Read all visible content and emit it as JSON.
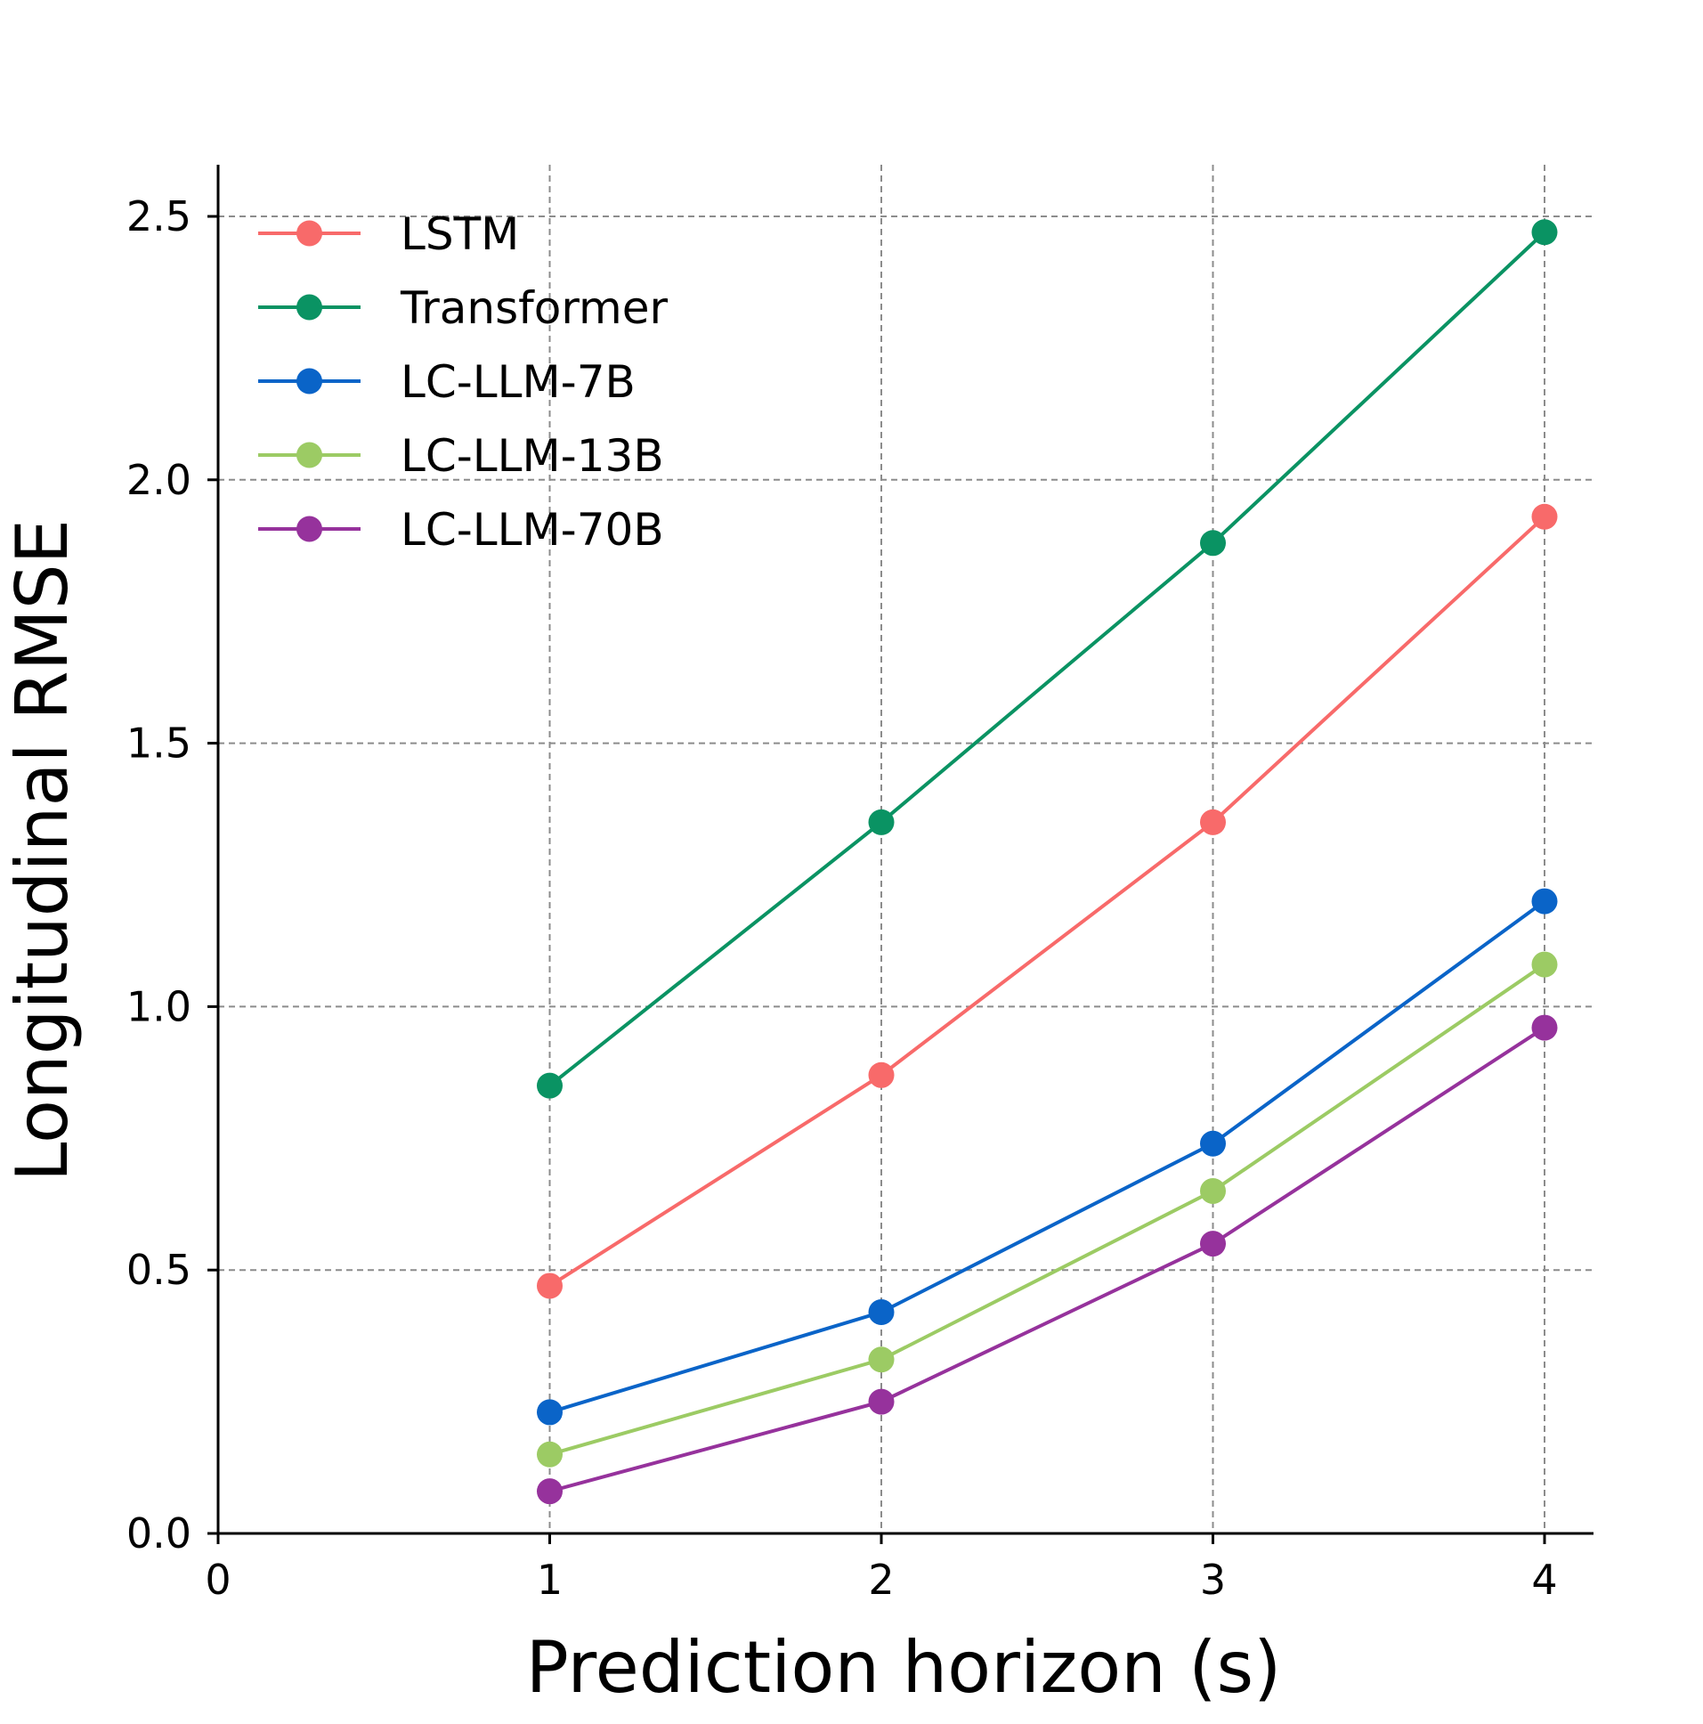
{
  "chart_data": {
    "type": "line",
    "title": "",
    "xlabel": "Prediction horizon (s)",
    "ylabel": "Longitudinal RMSE",
    "xlim": [
      0,
      4.15
    ],
    "ylim": [
      0,
      2.6
    ],
    "xticks": [
      0,
      1,
      2,
      3,
      4
    ],
    "xtick_labels": [
      "0",
      "1",
      "2",
      "3",
      "4"
    ],
    "yticks": [
      0.0,
      0.5,
      1.0,
      1.5,
      2.0,
      2.5
    ],
    "ytick_labels": [
      "0.0",
      "0.5",
      "1.0",
      "1.5",
      "2.0",
      "2.5"
    ],
    "grid": true,
    "legend_position": "upper-left",
    "x": [
      1,
      2,
      3,
      4
    ],
    "series": [
      {
        "name": "LSTM",
        "color": "#F86A6A",
        "values": [
          0.47,
          0.87,
          1.35,
          1.93
        ]
      },
      {
        "name": "Transformer",
        "color": "#0A9363",
        "values": [
          0.85,
          1.35,
          1.88,
          2.47
        ]
      },
      {
        "name": "LC-LLM-7B",
        "color": "#0A64C8",
        "values": [
          0.23,
          0.42,
          0.74,
          1.2
        ]
      },
      {
        "name": "LC-LLM-13B",
        "color": "#9CCB64",
        "values": [
          0.15,
          0.33,
          0.65,
          1.08
        ]
      },
      {
        "name": "LC-LLM-70B",
        "color": "#96329C",
        "values": [
          0.08,
          0.25,
          0.55,
          0.96
        ]
      }
    ]
  }
}
